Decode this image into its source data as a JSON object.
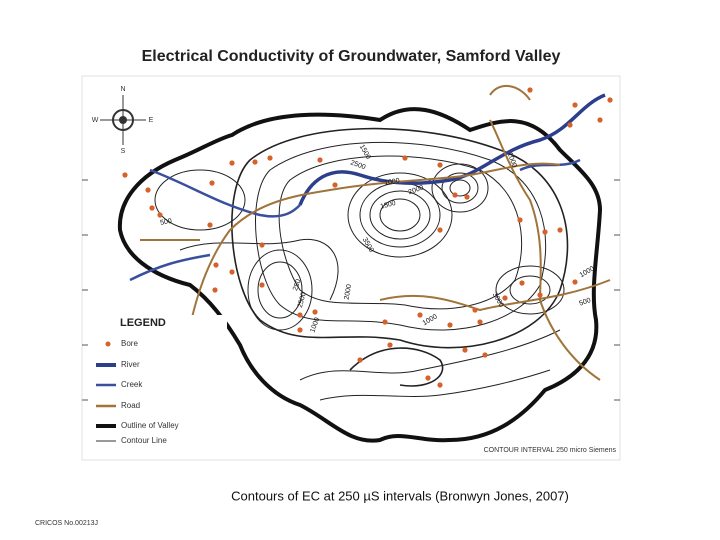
{
  "title": "Electrical Conductivity of Groundwater, Samford Valley",
  "compass": {
    "north": "N",
    "south": "S",
    "west": "W",
    "east": "E"
  },
  "legend": {
    "heading": "LEGEND",
    "items": [
      "Bore",
      "River",
      "Creek",
      "Road",
      "Outline of Valley",
      "Contour Line"
    ]
  },
  "contour_labels": [
    "1500",
    "2500",
    "1000",
    "1500",
    "2000",
    "1000",
    "500",
    "2000",
    "3500",
    "250",
    "2500",
    "3000",
    "1000",
    "1000",
    "1000",
    "500"
  ],
  "contour_note": "CONTOUR INTERVAL 250 micro Siemens",
  "caption": "Contours of EC at 250 µS intervals (Bronwyn Jones, 2007)",
  "footer": "CRICOS No.00213J"
}
